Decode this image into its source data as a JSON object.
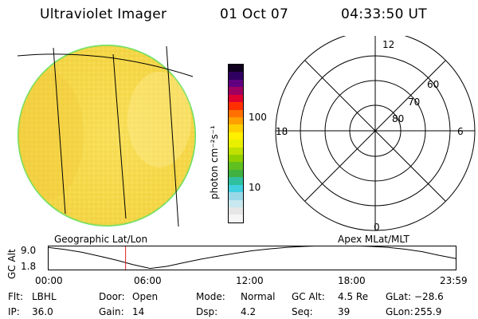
{
  "header": {
    "title": "Ultraviolet Imager",
    "date": "01 Oct 07",
    "time": "04:33:50 UT"
  },
  "colorbar": {
    "unit_label": "photon cm⁻²s⁻¹",
    "tick_labels": [
      "100",
      "10"
    ],
    "colors": [
      "#f5f5f5",
      "#e6e6e6",
      "#c8e8f0",
      "#9ad8e8",
      "#40d0e0",
      "#30c0a0",
      "#40b040",
      "#60c020",
      "#90d000",
      "#c0e000",
      "#e8f000",
      "#fff000",
      "#ffd000",
      "#ffa000",
      "#ff7000",
      "#ff3000",
      "#e00030",
      "#a00060",
      "#600080",
      "#300060",
      "#100020"
    ]
  },
  "uv_image": {
    "disk_color": "#f8d840",
    "rim_color": "#60e060"
  },
  "polar_grid": {
    "mlt_labels": {
      "top": "12",
      "left": "18",
      "right": "6",
      "bottom": "0"
    },
    "lat_labels": [
      "60",
      "70",
      "80"
    ]
  },
  "orbit_panel": {
    "left_label": "Geographic Lat/Lon",
    "right_label": "Apex MLat/MLT",
    "yaxis_label": "GC Alt",
    "y_ticks": [
      "9.0",
      "1.8"
    ],
    "x_ticks": [
      "00:00",
      "06:00",
      "12:00",
      "18:00",
      "23:59"
    ],
    "current_time_marker": "04:33"
  },
  "info": {
    "row1": [
      {
        "label": "Flt:",
        "value": "LBHL"
      },
      {
        "label": "Door:",
        "value": "Open"
      },
      {
        "label": "Mode:",
        "value": "Normal"
      },
      {
        "label": "GC Alt:",
        "value": "4.5 Re"
      },
      {
        "label": "GLat:",
        "value": "−28.6"
      }
    ],
    "row2": [
      {
        "label": "IP:",
        "value": "36.0"
      },
      {
        "label": "Gain:",
        "value": "14"
      },
      {
        "label": "Dsp:",
        "value": "4.2"
      },
      {
        "label": "Seq:",
        "value": "39"
      },
      {
        "label": "GLon:",
        "value": "255.9"
      }
    ]
  },
  "chart_data": {
    "type": "line",
    "title": "",
    "xlabel": "",
    "ylabel": "GC Alt",
    "x": [
      "00:00",
      "01:00",
      "02:00",
      "03:00",
      "04:00",
      "05:00",
      "06:00",
      "07:00",
      "08:00",
      "09:00",
      "10:00",
      "11:00",
      "12:00",
      "13:00",
      "14:00",
      "15:00",
      "16:00",
      "17:00",
      "18:00",
      "19:00",
      "20:00",
      "21:00",
      "22:00",
      "23:00",
      "23:59"
    ],
    "series": [
      {
        "values": [
          8.7,
          8.0,
          7.1,
          5.9,
          4.6,
          3.1,
          1.9,
          2.6,
          3.8,
          4.9,
          5.9,
          6.8,
          7.6,
          8.2,
          8.7,
          9.0,
          9.2,
          9.3,
          9.2,
          9.0,
          8.7,
          8.1,
          7.3,
          6.1,
          5.1
        ]
      }
    ],
    "ylim": [
      1.8,
      9.0
    ],
    "xticks": [
      "00:00",
      "06:00",
      "12:00",
      "18:00",
      "23:59"
    ],
    "marker_x": "04:33"
  }
}
